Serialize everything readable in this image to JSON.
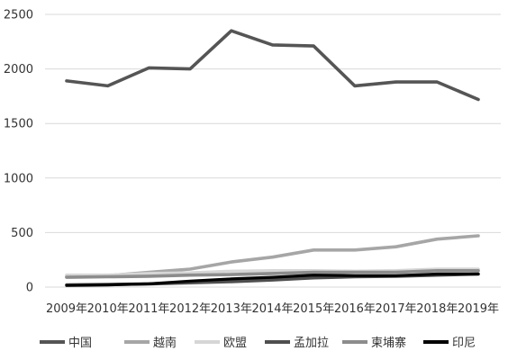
{
  "chart_data": {
    "type": "line",
    "title": "",
    "xlabel": "",
    "ylabel": "",
    "categories": [
      "2009年",
      "2010年",
      "2011年",
      "2012年",
      "2013年",
      "2014年",
      "2015年",
      "2016年",
      "2017年",
      "2018年",
      "2019年"
    ],
    "y_ticks": [
      "0",
      "500",
      "1000",
      "1500",
      "2000",
      "2500"
    ],
    "ylim": [
      0,
      2500
    ],
    "grid": true,
    "legend_position": "bottom",
    "series": [
      {
        "name": "中国",
        "color": "#555555",
        "values": [
          1890,
          1845,
          2010,
          2000,
          2350,
          2220,
          2210,
          1845,
          1880,
          1880,
          1720
        ]
      },
      {
        "name": "越南",
        "color": "#a6a6a6",
        "values": [
          100,
          105,
          135,
          165,
          230,
          275,
          340,
          340,
          370,
          440,
          470
        ]
      },
      {
        "name": "欧盟",
        "color": "#d6d6d6",
        "values": [
          110,
          110,
          125,
          130,
          145,
          150,
          150,
          145,
          150,
          165,
          165
        ]
      },
      {
        "name": "孟加拉",
        "color": "#4f4f4f",
        "values": [
          20,
          25,
          30,
          40,
          50,
          65,
          85,
          95,
          100,
          110,
          120
        ]
      },
      {
        "name": "柬埔寨",
        "color": "#8c8c8c",
        "values": [
          90,
          95,
          100,
          110,
          115,
          125,
          135,
          135,
          135,
          150,
          150
        ]
      },
      {
        "name": "印尼",
        "color": "#000000",
        "values": [
          15,
          20,
          30,
          55,
          75,
          90,
          110,
          105,
          105,
          120,
          120
        ]
      }
    ]
  }
}
